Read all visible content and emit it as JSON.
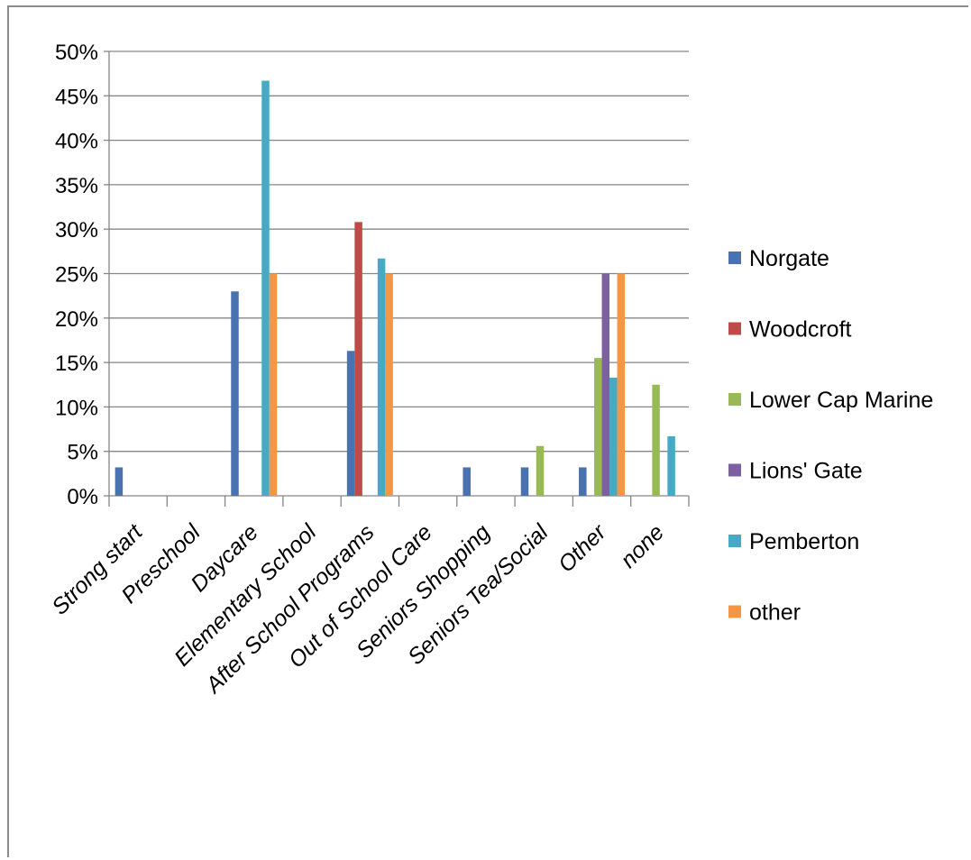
{
  "chart_data": {
    "type": "bar",
    "categories": [
      "Strong start",
      "Preschool",
      "Daycare",
      "Elementary School",
      "After School Programs",
      "Out of School Care",
      "Seniors Shopping",
      "Seniors Tea/Social",
      "Other",
      "none"
    ],
    "y_ticks": [
      "0%",
      "5%",
      "10%",
      "15%",
      "20%",
      "25%",
      "30%",
      "35%",
      "40%",
      "45%",
      "50%"
    ],
    "ylim": [
      0,
      50
    ],
    "grid": true,
    "legend_position": "right",
    "series": [
      {
        "name": "Norgate",
        "color": "#4a72b0",
        "values": [
          3.2,
          0,
          23,
          0,
          16.3,
          0,
          3.2,
          3.2,
          3.2,
          0
        ]
      },
      {
        "name": "Woodcroft",
        "color": "#be4b48",
        "values": [
          0,
          0,
          0,
          0,
          30.8,
          0,
          0,
          0,
          0,
          0
        ]
      },
      {
        "name": "Lower Cap Marine",
        "color": "#98b954",
        "values": [
          0,
          0,
          0,
          0,
          0,
          0,
          0,
          5.6,
          15.5,
          12.5
        ]
      },
      {
        "name": "Lions' Gate",
        "color": "#7d60a0",
        "values": [
          0,
          0,
          0,
          0,
          0,
          0,
          0,
          0,
          25,
          0
        ]
      },
      {
        "name": "Pemberton",
        "color": "#46aac5",
        "values": [
          0,
          0,
          46.7,
          0,
          26.7,
          0,
          0,
          0,
          13.3,
          6.7
        ]
      },
      {
        "name": "other",
        "color": "#f59644",
        "values": [
          0,
          0,
          25,
          0,
          25,
          0,
          0,
          0,
          25,
          0
        ]
      }
    ]
  }
}
